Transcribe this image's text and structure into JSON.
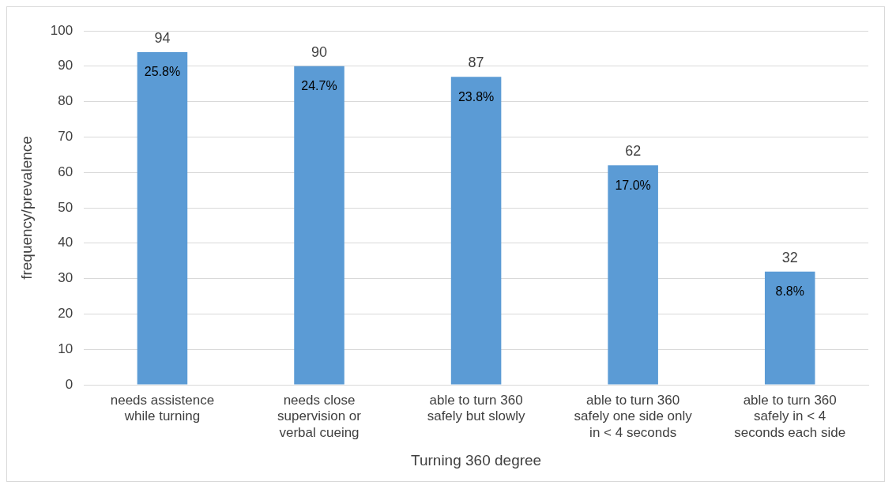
{
  "chart_data": {
    "type": "bar",
    "xlabel": "Turning 360 degree",
    "ylabel": "frequency/prevalence",
    "categories": [
      "needs assistence while turning",
      "needs close supervision or verbal cueing",
      "able to turn 360 safely but slowly",
      "able to turn 360 safely one side only in < 4 seconds",
      "able to turn 360 safely in < 4 seconds each side"
    ],
    "values": [
      94,
      90,
      87,
      62,
      32
    ],
    "color": "#5b9bd5",
    "value_labels": [
      "94",
      "90",
      "87",
      "62",
      "32"
    ],
    "annotations": [
      {
        "text": "25.8%",
        "x": "needs assistence while turning",
        "y": 94
      },
      {
        "text": "24.7%",
        "x": "needs close supervision or verbal cueing",
        "y": 90
      },
      {
        "text": "23.8%",
        "x": "able to turn 360 safely but slowly",
        "y": 87
      },
      {
        "text": "17.0%",
        "x": "able to turn 360 safely one side only in < 4 seconds",
        "y": 62
      },
      {
        "text": "8.8%",
        "x": "able to turn 360 safely in < 4 seconds each side",
        "y": 32
      }
    ],
    "ylim": [
      0,
      100
    ],
    "yticks": [
      0,
      10,
      20,
      30,
      40,
      50,
      60,
      70,
      80,
      90,
      100
    ],
    "grid": "y",
    "legend": false
  }
}
